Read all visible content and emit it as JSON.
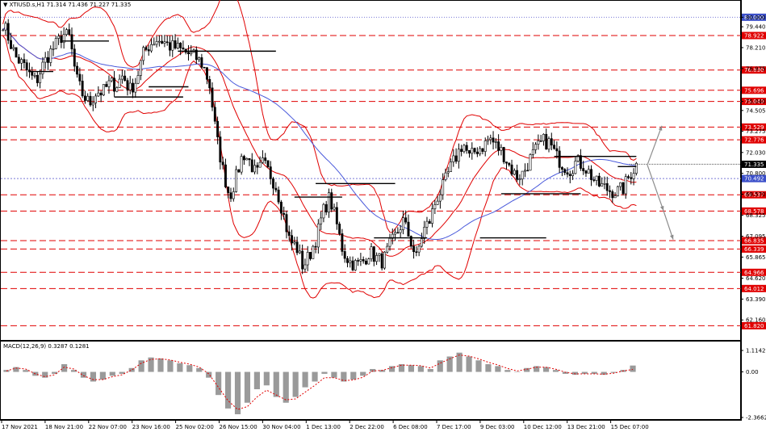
{
  "header": {
    "symbol": "XTIUSD.s,H1",
    "ohlc": "71.314 71.436 71.227 71.335"
  },
  "macd_header": "MACD(12,26,9) 0.3287 0.1281",
  "colors": {
    "candle": "#000000",
    "bands": "#e00000",
    "ma": "#4a5adb",
    "levels": "#e00000",
    "current_price_tag": "#000000",
    "arrows": "#8c8c8c",
    "grid_dotted": "#7b7bd6",
    "macd_hist": "#9a9a9a",
    "macd_signal": "#e00000"
  },
  "chart_data": [
    {
      "type": "candlestick",
      "title": "XTIUSD.s,H1",
      "x_ticks": [
        "17 Nov 2021",
        "18 Nov 21:00",
        "22 Nov 07:00",
        "23 Nov 16:00",
        "25 Nov 02:00",
        "26 Nov 15:00",
        "30 Nov 04:00",
        "1 Dec 13:00",
        "2 Dec 22:00",
        "6 Dec 08:00",
        "7 Dec 17:00",
        "9 Dec 03:00",
        "10 Dec 12:00",
        "13 Dec 21:00",
        "15 Dec 07:00"
      ],
      "y_ticks": [
        "80.000",
        "79.440",
        "78.210",
        "76.975",
        "75.040",
        "74.505",
        "73.275",
        "72.030",
        "70.800",
        "69.570",
        "68.325",
        "67.095",
        "65.865",
        "64.620",
        "63.390",
        "62.160"
      ],
      "levels": [
        "78.922",
        "76.890",
        "75.696",
        "75.040",
        "73.529",
        "72.776",
        "70.492",
        "69.537",
        "68.578",
        "66.835",
        "66.339",
        "64.966",
        "64.012",
        "61.820"
      ],
      "level_dashed": [
        true,
        true,
        true,
        true,
        true,
        true,
        false,
        true,
        true,
        true,
        true,
        true,
        true,
        true
      ],
      "current_price": "71.335",
      "ylim": [
        61.6,
        80.35
      ],
      "close_path": [
        79.7,
        78.6,
        77.6,
        77.2,
        76.6,
        76.2,
        77.2,
        77.9,
        78.4,
        79.0,
        78.8,
        76.4,
        75.4,
        74.9,
        75.6,
        75.6,
        76.1,
        76.0,
        76.6,
        75.7,
        76.3,
        77.8,
        78.4,
        78.7,
        78.6,
        78.3,
        78.2,
        78.0,
        77.8,
        77.6,
        77.2,
        76.0,
        73.0,
        71.0,
        69.4,
        70.6,
        72.0,
        71.5,
        70.7,
        71.4,
        70.8,
        70.0,
        68.5,
        66.8,
        66.5,
        65.3,
        66.0,
        67.0,
        68.5,
        69.4,
        67.9,
        66.2,
        65.6,
        65.4,
        65.6,
        66.2,
        65.8,
        65.6,
        66.5,
        67.2,
        68.0,
        67.0,
        65.8,
        67.4,
        68.0,
        69.3,
        70.0,
        71.0,
        71.8,
        72.6,
        71.7,
        72.2,
        72.4,
        72.9,
        72.4,
        72.0,
        71.2,
        70.6,
        70.8,
        71.6,
        72.2,
        72.7,
        72.6,
        71.8,
        71.3,
        71.0,
        71.5,
        71.3,
        70.8,
        70.2,
        70.0,
        69.8,
        69.7,
        69.9,
        70.7,
        71.3
      ]
    },
    {
      "type": "macd",
      "title": "MACD(12,26,9) 0.3287 0.1281",
      "y_ticks": [
        "1.1142",
        "0.00",
        "-2.3662"
      ],
      "ylim": [
        -2.3662,
        1.1142
      ],
      "hist": [
        0.1,
        0.25,
        0.1,
        -0.2,
        -0.3,
        -0.1,
        0.4,
        0.1,
        -0.3,
        -0.5,
        -0.4,
        -0.2,
        -0.1,
        0.2,
        0.6,
        0.75,
        0.7,
        0.6,
        0.45,
        0.35,
        0.2,
        -0.3,
        -1.2,
        -1.9,
        -2.2,
        -1.6,
        -0.9,
        -0.7,
        -1.3,
        -1.6,
        -1.3,
        -0.8,
        -0.5,
        -0.1,
        -0.3,
        -0.5,
        -0.4,
        -0.2,
        0.15,
        0.1,
        0.3,
        0.4,
        0.35,
        0.3,
        0.15,
        0.6,
        0.8,
        1.0,
        0.8,
        0.6,
        0.4,
        0.3,
        0.1,
        0.0,
        0.2,
        0.3,
        0.25,
        0.1,
        -0.1,
        -0.15,
        -0.1,
        -0.1,
        -0.15,
        -0.05,
        0.1,
        0.33
      ],
      "signal": [
        0.05,
        0.2,
        0.15,
        -0.1,
        -0.25,
        -0.15,
        0.25,
        0.15,
        -0.2,
        -0.4,
        -0.4,
        -0.25,
        -0.15,
        0.1,
        0.45,
        0.65,
        0.68,
        0.62,
        0.5,
        0.4,
        0.25,
        -0.1,
        -0.8,
        -1.5,
        -1.95,
        -1.8,
        -1.3,
        -0.95,
        -1.2,
        -1.45,
        -1.4,
        -1.05,
        -0.7,
        -0.3,
        -0.3,
        -0.45,
        -0.42,
        -0.28,
        0.05,
        0.08,
        0.22,
        0.35,
        0.35,
        0.32,
        0.2,
        0.45,
        0.68,
        0.88,
        0.82,
        0.68,
        0.5,
        0.36,
        0.18,
        0.05,
        0.14,
        0.24,
        0.24,
        0.14,
        -0.02,
        -0.1,
        -0.1,
        -0.1,
        -0.12,
        -0.07,
        0.05,
        0.13
      ]
    }
  ]
}
